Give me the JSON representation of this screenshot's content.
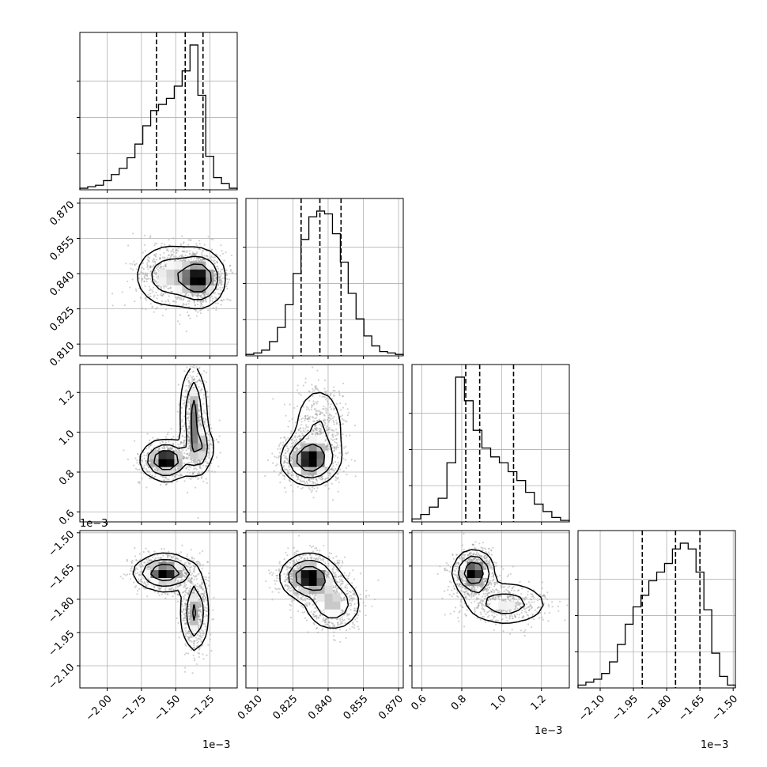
{
  "chart_data": {
    "type": "corner",
    "grid": true,
    "parameters": [
      {
        "range": [
          -2.2,
          -1.05
        ],
        "ticks": [
          -2.0,
          -1.75,
          -1.5,
          -1.25
        ],
        "tick_labels": [
          "−2.00",
          "−1.75",
          "−1.50",
          "−1.25"
        ],
        "offset": "1e−3",
        "quantiles": [
          -1.64,
          -1.43,
          -1.3
        ]
      },
      {
        "range": [
          0.805,
          0.872
        ],
        "ticks": [
          0.81,
          0.825,
          0.84,
          0.855,
          0.87
        ],
        "tick_labels": [
          "0.810",
          "0.825",
          "0.840",
          "0.855",
          "0.870"
        ],
        "offset": "",
        "quantiles": [
          0.8285,
          0.8365,
          0.8455
        ]
      },
      {
        "range": [
          0.55,
          1.34
        ],
        "ticks": [
          0.6,
          0.8,
          1.0,
          1.2
        ],
        "tick_labels": [
          "0.6",
          "0.8",
          "1.0",
          "1.2"
        ],
        "offset": "1e−3",
        "quantiles": [
          0.82,
          0.89,
          1.06
        ]
      },
      {
        "range": [
          -2.2,
          -1.49
        ],
        "ticks": [
          -2.1,
          -1.95,
          -1.8,
          -1.65,
          -1.5
        ],
        "tick_labels": [
          "−2.10",
          "−1.95",
          "−1.80",
          "−1.65",
          "−1.50"
        ],
        "offset": "1e−3",
        "quantiles": [
          -1.91,
          -1.76,
          -1.65
        ]
      }
    ],
    "histograms": [
      [
        1,
        2,
        3,
        6,
        10,
        14,
        21,
        30,
        42,
        52,
        56,
        60,
        68,
        78,
        95,
        62,
        22,
        8,
        4,
        1
      ],
      [
        1,
        2,
        4,
        10,
        20,
        36,
        58,
        82,
        98,
        102,
        100,
        86,
        66,
        44,
        26,
        14,
        7,
        3,
        2,
        1
      ],
      [
        2,
        5,
        10,
        16,
        40,
        98,
        82,
        62,
        50,
        44,
        40,
        34,
        28,
        20,
        12,
        7,
        3,
        1
      ],
      [
        2,
        4,
        6,
        10,
        18,
        30,
        44,
        56,
        64,
        74,
        80,
        86,
        96,
        100,
        96,
        80,
        54,
        24,
        8,
        2
      ]
    ]
  }
}
